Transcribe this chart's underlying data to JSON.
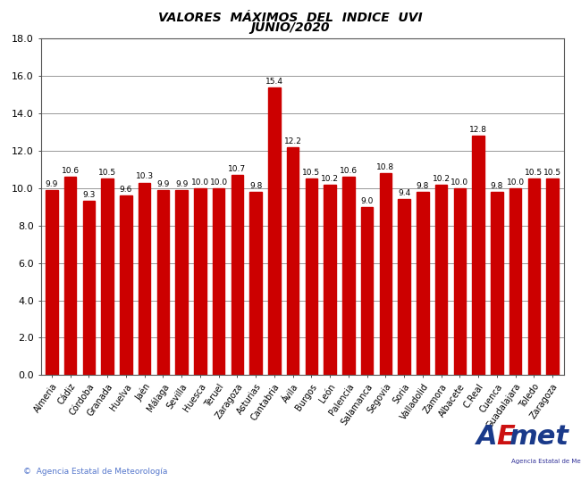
{
  "title_line1": "VALORES  MÁXIMOS  DEL  INDICE  UVI",
  "title_line2": "JUNIO/2020",
  "categories": [
    "Almeria",
    "Cádiz",
    "Córdoba",
    "Granada",
    "Huelva",
    "Jaén",
    "Málaga",
    "Sevilla",
    "Huesca",
    "Teruel",
    "Zaragoza",
    "Asturias",
    "Cantabria",
    "Ávila",
    "Burgos",
    "León",
    "Palencia",
    "Salamanca",
    "Segovia",
    "Soria",
    "Valladolid",
    "Zamora",
    "Albacete",
    "C.Real",
    "Cuenca",
    "Guadalajara",
    "Toledo",
    "Zaragoza"
  ],
  "values": [
    9.9,
    10.6,
    9.3,
    10.5,
    9.6,
    10.3,
    9.9,
    9.9,
    10.0,
    10.0,
    10.7,
    9.8,
    15.4,
    12.2,
    10.5,
    10.2,
    10.6,
    9.0,
    10.8,
    9.4,
    9.8,
    10.2,
    10.0,
    12.8,
    9.8,
    10.0,
    10.5,
    10.5
  ],
  "bar_color": "#cc0000",
  "ylim": [
    0,
    18
  ],
  "yticks": [
    0.0,
    2.0,
    4.0,
    6.0,
    8.0,
    10.0,
    12.0,
    14.0,
    16.0,
    18.0
  ],
  "ytick_labels": [
    "0.0",
    "2.0",
    "4.0",
    "6.0",
    "8.0",
    "10.0",
    "12.0",
    "14.0",
    "16.0",
    "18.0"
  ],
  "ylabel_fontsize": 8,
  "xlabel_fontsize": 7,
  "value_fontsize": 6.5,
  "title_fontsize": 10,
  "bg_color": "#ffffff",
  "grid_color": "#888888",
  "copyright_text": "©  Agencia Estatal de Meteorología",
  "border_color": "#555555"
}
